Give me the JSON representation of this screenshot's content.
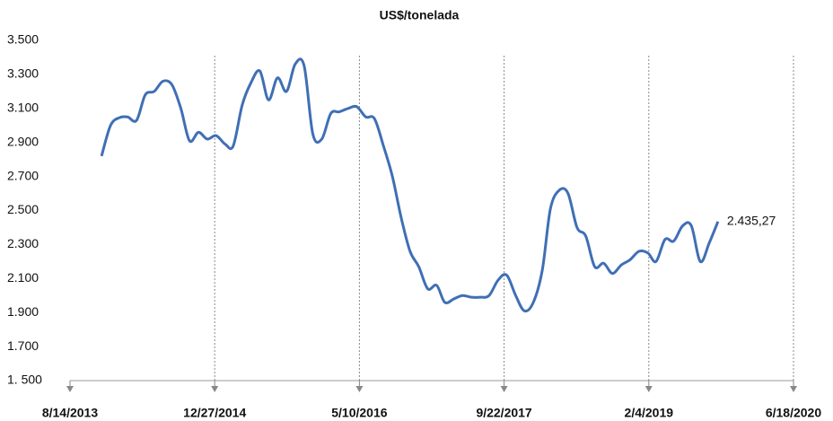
{
  "chart_data": {
    "type": "line",
    "title": "US$/tonelada",
    "x": [
      "2013-12-01",
      "2014-01-01",
      "2014-02-01",
      "2014-03-01",
      "2014-04-01",
      "2014-05-01",
      "2014-06-01",
      "2014-07-01",
      "2014-08-01",
      "2014-09-01",
      "2014-10-01",
      "2014-11-01",
      "2014-12-01",
      "2015-01-01",
      "2015-02-01",
      "2015-03-01",
      "2015-04-01",
      "2015-05-01",
      "2015-06-01",
      "2015-07-01",
      "2015-08-01",
      "2015-09-01",
      "2015-10-01",
      "2015-11-01",
      "2015-12-01",
      "2016-01-01",
      "2016-02-01",
      "2016-03-01",
      "2016-04-01",
      "2016-05-01",
      "2016-06-01",
      "2016-07-01",
      "2016-08-01",
      "2016-09-01",
      "2016-10-01",
      "2016-11-01",
      "2016-12-01",
      "2017-01-01",
      "2017-02-01",
      "2017-03-01",
      "2017-04-01",
      "2017-05-01",
      "2017-06-01",
      "2017-07-01",
      "2017-08-01",
      "2017-09-01",
      "2017-10-01",
      "2017-11-01",
      "2017-12-01",
      "2018-01-01",
      "2018-02-01",
      "2018-03-01",
      "2018-04-01",
      "2018-05-01",
      "2018-06-01",
      "2018-07-01",
      "2018-08-01",
      "2018-09-01",
      "2018-10-01",
      "2018-11-01",
      "2018-12-01",
      "2019-01-01",
      "2019-02-01",
      "2019-03-01",
      "2019-04-01",
      "2019-05-01",
      "2019-06-01",
      "2019-07-01",
      "2019-08-01",
      "2019-09-01",
      "2019-10-01"
    ],
    "series": [
      {
        "name": "US$/tonelada",
        "color": "#3f6fb5",
        "values": [
          2820,
          3000,
          3046,
          3050,
          3030,
          3180,
          3200,
          3260,
          3240,
          3100,
          2910,
          2960,
          2920,
          2940,
          2890,
          2880,
          3120,
          3250,
          3320,
          3150,
          3280,
          3200,
          3360,
          3350,
          2950,
          2920,
          3070,
          3080,
          3100,
          3110,
          3050,
          3040,
          2880,
          2700,
          2460,
          2260,
          2170,
          2040,
          2060,
          1960,
          1980,
          2000,
          1990,
          1990,
          2000,
          2090,
          2120,
          2000,
          1910,
          1960,
          2150,
          2510,
          2620,
          2600,
          2400,
          2350,
          2170,
          2190,
          2130,
          2180,
          2210,
          2260,
          2250,
          2200,
          2330,
          2320,
          2410,
          2410,
          2200,
          2310,
          2435.27
        ],
        "value_labels": [
          null,
          null,
          null,
          null,
          null,
          null,
          null,
          null,
          null,
          null,
          null,
          null,
          null,
          null,
          null,
          null,
          null,
          null,
          null,
          null,
          null,
          null,
          null,
          null,
          null,
          null,
          null,
          null,
          null,
          null,
          null,
          null,
          null,
          null,
          null,
          null,
          null,
          null,
          null,
          null,
          null,
          null,
          null,
          null,
          null,
          null,
          null,
          null,
          null,
          null,
          null,
          null,
          null,
          null,
          null,
          null,
          null,
          null,
          null,
          null,
          null,
          null,
          null,
          null,
          null,
          null,
          null,
          null,
          null,
          null,
          "2.435,27"
        ]
      }
    ],
    "xlim": [
      "2013-08-14",
      "2020-06-18"
    ],
    "xticks": [
      {
        "value": "2013-08-14",
        "label": "8/14/2013"
      },
      {
        "value": "2014-12-27",
        "label": "12/27/2014"
      },
      {
        "value": "2016-05-10",
        "label": "5/10/2016"
      },
      {
        "value": "2017-09-22",
        "label": "9/22/2017"
      },
      {
        "value": "2019-02-04",
        "label": "2/4/2019"
      },
      {
        "value": "2020-06-18",
        "label": "6/18/2020"
      }
    ],
    "ylim": [
      1500,
      3500
    ],
    "yticks": [
      {
        "value": 1500,
        "label": "1. 500"
      },
      {
        "value": 1700,
        "label": "1.700"
      },
      {
        "value": 1900,
        "label": "1.900"
      },
      {
        "value": 2100,
        "label": "2.100"
      },
      {
        "value": 2300,
        "label": "2.300"
      },
      {
        "value": 2500,
        "label": "2.500"
      },
      {
        "value": 2700,
        "label": "2.700"
      },
      {
        "value": 2900,
        "label": "2.900"
      },
      {
        "value": 3100,
        "label": "3.100"
      },
      {
        "value": 3300,
        "label": "3.300"
      },
      {
        "value": 3500,
        "label": "3.500"
      }
    ],
    "grid": "x"
  }
}
